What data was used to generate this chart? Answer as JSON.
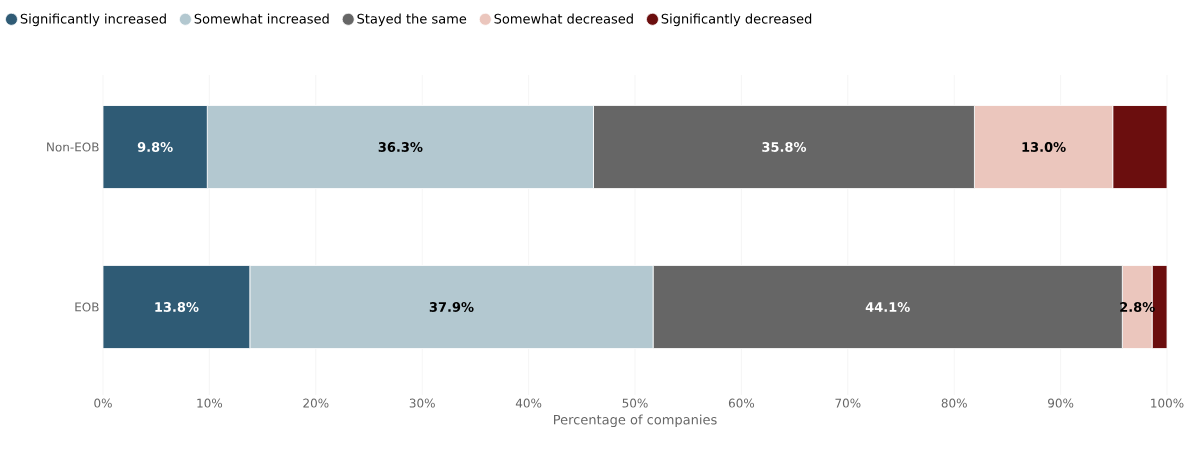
{
  "chart_data": {
    "type": "bar",
    "orientation": "horizontal",
    "stacked": true,
    "categories": [
      "Non-EOB",
      "EOB"
    ],
    "series": [
      {
        "name": "Significantly increased",
        "color": "#2f5b75",
        "values": [
          9.8,
          13.8
        ],
        "value_labels": [
          "9.8%",
          "13.8%"
        ]
      },
      {
        "name": "Somewhat increased",
        "color": "#b3c8d0",
        "values": [
          36.3,
          37.9
        ],
        "value_labels": [
          "36.3%",
          "37.9%"
        ]
      },
      {
        "name": "Stayed the same",
        "color": "#666666",
        "values": [
          35.8,
          44.1
        ],
        "value_labels": [
          "35.8%",
          "44.1%"
        ]
      },
      {
        "name": "Somewhat decreased",
        "color": "#ebc6bd",
        "values": [
          13.0,
          2.8
        ],
        "value_labels": [
          "13.0%",
          "2.8%"
        ]
      },
      {
        "name": "Significantly decreased",
        "color": "#6b0e0e",
        "values": [
          5.1,
          1.4
        ],
        "value_labels": [
          null,
          null
        ]
      }
    ],
    "xlabel": "Percentage of companies",
    "xlim": [
      0,
      100
    ],
    "xticks": [
      {
        "value": 0,
        "label": "0%"
      },
      {
        "value": 10,
        "label": "10%"
      },
      {
        "value": 20,
        "label": "20%"
      },
      {
        "value": 30,
        "label": "30%"
      },
      {
        "value": 40,
        "label": "40%"
      },
      {
        "value": 50,
        "label": "50%"
      },
      {
        "value": 60,
        "label": "60%"
      },
      {
        "value": 70,
        "label": "70%"
      },
      {
        "value": 80,
        "label": "80%"
      },
      {
        "value": 90,
        "label": "90%"
      },
      {
        "value": 100,
        "label": "100%"
      }
    ],
    "grid": "x",
    "legend": "top"
  }
}
